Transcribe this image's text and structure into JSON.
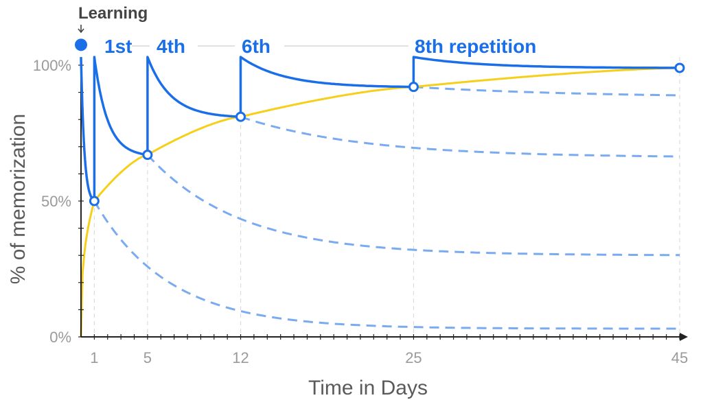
{
  "chart_data": {
    "type": "line",
    "title": "",
    "xlabel": "Time in Days",
    "ylabel": "% of memorization",
    "xticks": [
      1,
      5,
      12,
      25,
      45
    ],
    "yticks": [
      {
        "value": 0,
        "label": "0%"
      },
      {
        "value": 50,
        "label": "50%"
      },
      {
        "value": 100,
        "label": "100%"
      }
    ],
    "xlim": [
      0,
      45
    ],
    "ylim": [
      0,
      100
    ],
    "learning_label": "Learning",
    "learning_point": {
      "x": 0,
      "y": 108
    },
    "annotations": [
      {
        "text": "1st",
        "x": 1
      },
      {
        "text": "4th",
        "x": 5
      },
      {
        "text": "6th",
        "x": 12
      },
      {
        "text": "8th repetition",
        "x": 25
      }
    ],
    "review_points": [
      {
        "x": 1,
        "y": 50
      },
      {
        "x": 5,
        "y": 67
      },
      {
        "x": 12,
        "y": 81
      },
      {
        "x": 25,
        "y": 92
      },
      {
        "x": 45,
        "y": 99
      }
    ],
    "peak_value": 103,
    "decay_series_asymptotes": [
      3,
      30,
      66,
      88
    ],
    "colors": {
      "retention": "#1a6fe8",
      "forgetting_dashed": "#7aaaf0",
      "growth": "#f5cf1a",
      "grid": "#dcdcdc",
      "axis": "#222222"
    },
    "grid": true
  }
}
